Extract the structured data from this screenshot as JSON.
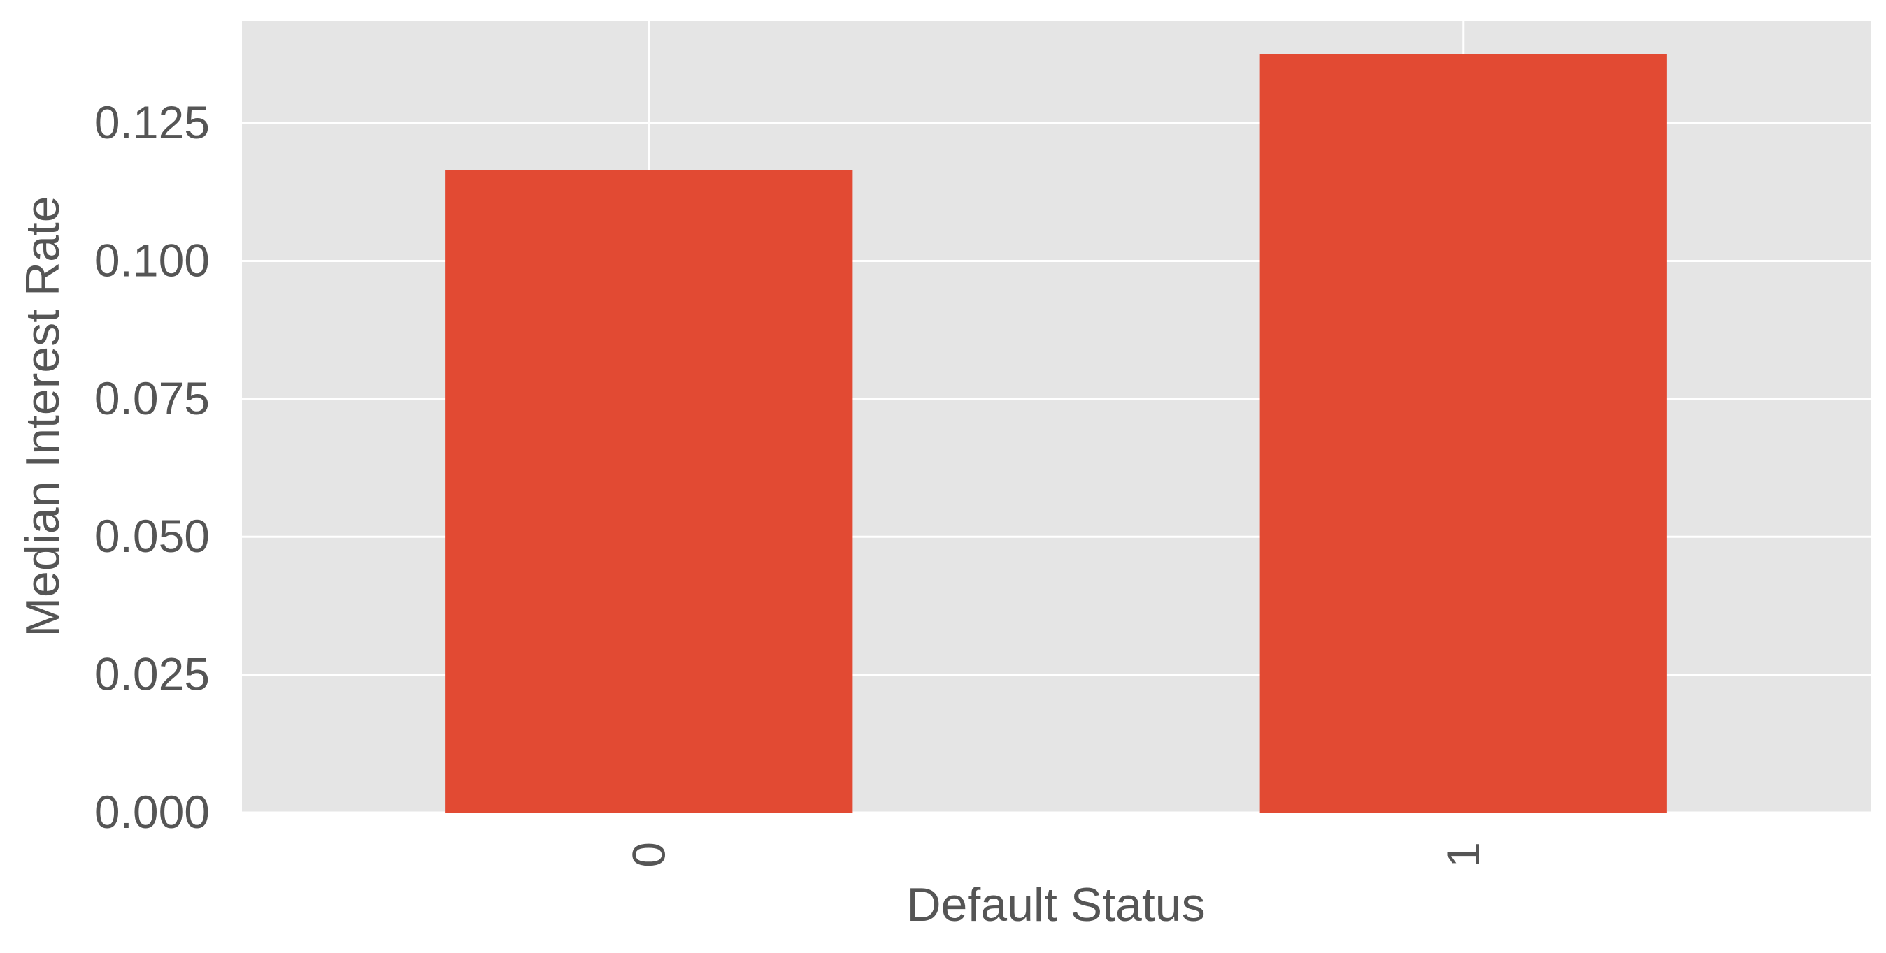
{
  "chart_data": {
    "type": "bar",
    "categories": [
      "0",
      "1"
    ],
    "values": [
      0.1165,
      0.1375
    ],
    "title": "",
    "xlabel": "Default Status",
    "ylabel": "Median Interest Rate",
    "ylim": [
      0,
      0.1435
    ],
    "yticks": [
      0.0,
      0.025,
      0.05,
      0.075,
      0.1,
      0.125
    ],
    "ytick_labels": [
      "0.000",
      "0.025",
      "0.050",
      "0.075",
      "0.100",
      "0.125"
    ],
    "x_tick_rotation": "vertical",
    "grid": true,
    "legend": "none",
    "colors": {
      "bar": "#e24a33",
      "plot_background": "#e5e5e5",
      "grid": "#ffffff",
      "text": "#555555"
    }
  }
}
